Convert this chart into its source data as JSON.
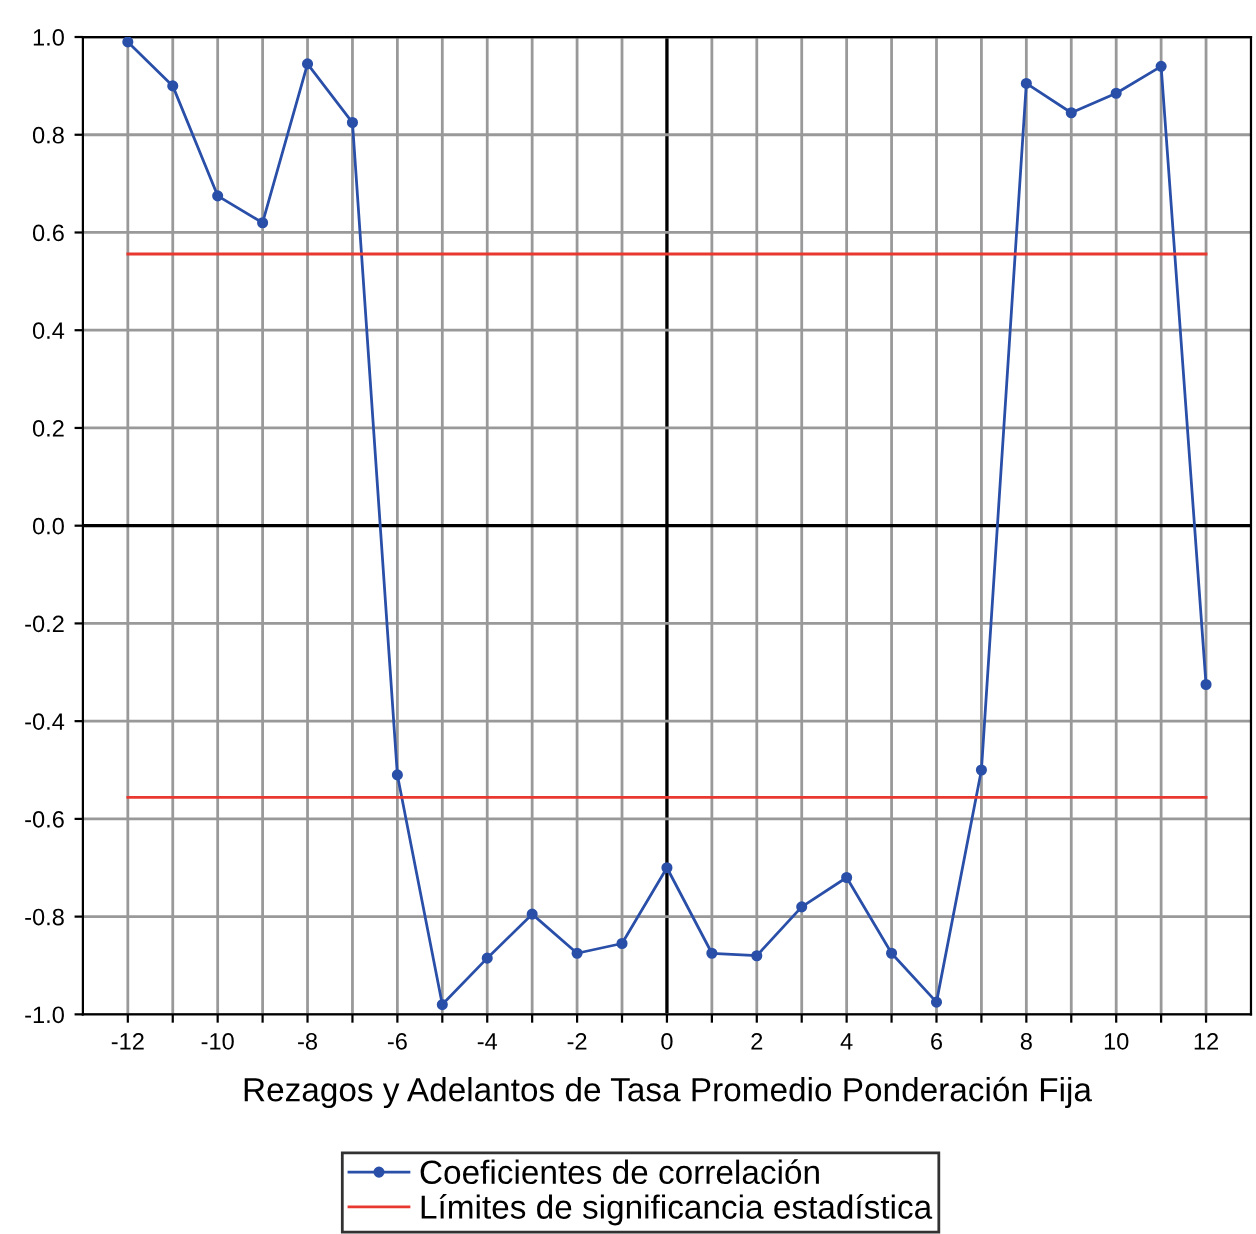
{
  "chart_data": {
    "type": "line",
    "xlabel": "Rezagos y Adelantos de Tasa Promedio Ponderación Fija",
    "x": [
      -12,
      -11,
      -10,
      -9,
      -8,
      -7,
      -6,
      -5,
      -4,
      -3,
      -2,
      -1,
      0,
      1,
      2,
      3,
      4,
      5,
      6,
      7,
      8,
      9,
      10,
      11,
      12
    ],
    "series": [
      {
        "name": "Coeficientes de correlación",
        "color": "#2a4fa8",
        "marker": "circle",
        "values": [
          0.99,
          0.9,
          0.675,
          0.62,
          0.945,
          0.825,
          -0.51,
          -0.98,
          -0.885,
          -0.795,
          -0.875,
          -0.855,
          -0.7,
          -0.875,
          -0.88,
          -0.78,
          -0.72,
          -0.875,
          -0.975,
          -0.5,
          0.905,
          0.845,
          0.885,
          0.94,
          -0.325
        ]
      },
      {
        "name": "Límites de significancia estadística",
        "color": "#e8382f",
        "marker": "none",
        "values": [
          0.556,
          0.556,
          0.556,
          0.556,
          0.556,
          0.556,
          0.556,
          0.556,
          0.556,
          0.556,
          0.556,
          0.556,
          0.556,
          0.556,
          0.556,
          0.556,
          0.556,
          0.556,
          0.556,
          0.556,
          0.556,
          0.556,
          0.556,
          0.556,
          0.556
        ]
      },
      {
        "color": "#e8382f",
        "marker": "none",
        "values": [
          -0.556,
          -0.556,
          -0.556,
          -0.556,
          -0.556,
          -0.556,
          -0.556,
          -0.556,
          -0.556,
          -0.556,
          -0.556,
          -0.556,
          -0.556,
          -0.556,
          -0.556,
          -0.556,
          -0.556,
          -0.556,
          -0.556,
          -0.556,
          -0.556,
          -0.556,
          -0.556,
          -0.556,
          -0.556
        ]
      }
    ],
    "xlim": [
      -13,
      13
    ],
    "xticks": [
      -12,
      {
        "value": -11,
        "label": null
      },
      -10,
      {
        "value": -9,
        "label": null
      },
      -8,
      {
        "value": -7,
        "label": null
      },
      -6,
      {
        "value": -5,
        "label": null
      },
      -4,
      {
        "value": -3,
        "label": null
      },
      -2,
      {
        "value": -1,
        "label": null
      },
      0,
      {
        "value": 1,
        "label": null
      },
      2,
      {
        "value": 3,
        "label": null
      },
      4,
      {
        "value": 5,
        "label": null
      },
      6,
      {
        "value": 7,
        "label": null
      },
      8,
      {
        "value": 9,
        "label": null
      },
      10,
      {
        "value": 11,
        "label": null
      },
      12
    ],
    "ylim": [
      -1.0,
      1.0
    ],
    "yticks": [
      {
        "value": -1.0,
        "label": "-1.0"
      },
      {
        "value": -0.8,
        "label": "-0.8"
      },
      {
        "value": -0.6,
        "label": "-0.6"
      },
      {
        "value": -0.4,
        "label": "-0.4"
      },
      {
        "value": -0.2,
        "label": "-0.2"
      },
      {
        "value": 0.0,
        "label": "0.0"
      },
      {
        "value": 0.2,
        "label": "0.2"
      },
      {
        "value": 0.4,
        "label": "0.4"
      },
      {
        "value": 0.6,
        "label": "0.6"
      },
      {
        "value": 0.8,
        "label": "0.8"
      },
      {
        "value": 1.0,
        "label": "1.0"
      }
    ],
    "grid": true,
    "legend": "bottom",
    "line_style": "solid"
  }
}
